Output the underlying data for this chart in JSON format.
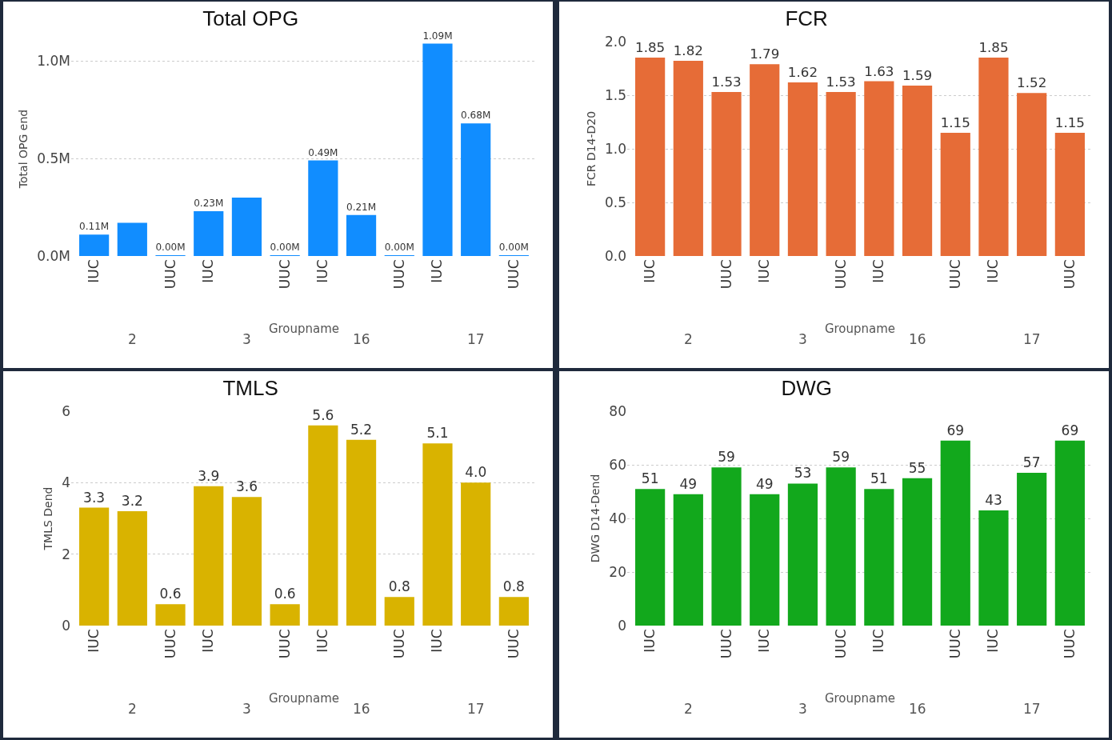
{
  "chart_data": [
    {
      "type": "bar",
      "title": "Total OPG",
      "xlabel": "Groupname",
      "ylabel": "Total OPG end",
      "categories": [
        "IUC",
        null,
        "UUC",
        "IUC",
        null,
        "UUC",
        "IUC",
        null,
        "UUC",
        "IUC",
        null,
        "UUC"
      ],
      "annotations": [
        "2",
        "3",
        "16",
        "17"
      ],
      "values": [
        0.11,
        0.17,
        0.004,
        0.23,
        0.3,
        0.004,
        0.49,
        0.21,
        0.004,
        1.09,
        0.68,
        0.004
      ],
      "value_labels": [
        "0.11M",
        null,
        "0.00M",
        "0.23M",
        null,
        "0.00M",
        "0.49M",
        "0.21M",
        "0.00M",
        "1.09M",
        "0.68M",
        "0.00M"
      ],
      "color": "#118dff",
      "ylim": [
        0,
        1.1
      ],
      "yticks": [
        {
          "value": 0,
          "label": "0.0M"
        },
        {
          "value": 0.5,
          "label": "0.5M"
        },
        {
          "value": 1,
          "label": "1.0M"
        }
      ],
      "grid": "y",
      "legend": false
    },
    {
      "type": "bar",
      "title": "FCR",
      "xlabel": "Groupname",
      "ylabel": "FCR D14-D20",
      "categories": [
        "IUC",
        null,
        "UUC",
        "IUC",
        null,
        "UUC",
        "IUC",
        null,
        "UUC",
        "IUC",
        null,
        "UUC"
      ],
      "annotations": [
        "2",
        "3",
        "16",
        "17"
      ],
      "values": [
        1.85,
        1.82,
        1.53,
        1.79,
        1.62,
        1.53,
        1.63,
        1.59,
        1.15,
        1.85,
        1.52,
        1.15
      ],
      "data_labels": true,
      "color": "#e66c37",
      "ylim": [
        0,
        2
      ],
      "yticks": [
        {
          "value": 0,
          "label": "0.0"
        },
        {
          "value": 0.5,
          "label": "0.5"
        },
        {
          "value": 1,
          "label": "1.0"
        },
        {
          "value": 1.5,
          "label": "1.5"
        },
        {
          "value": 2,
          "label": "2.0"
        }
      ],
      "grid": "y",
      "legend": false
    },
    {
      "type": "bar",
      "title": "TMLS",
      "xlabel": "Groupname",
      "ylabel": "TMLS Dend",
      "categories": [
        "IUC",
        null,
        "UUC",
        "IUC",
        null,
        "UUC",
        "IUC",
        null,
        "UUC",
        "IUC",
        null,
        "UUC"
      ],
      "annotations": [
        "2",
        "3",
        "16",
        "17"
      ],
      "values": [
        3.3,
        3.2,
        0.6,
        3.9,
        3.6,
        0.6,
        5.6,
        5.2,
        0.8,
        5.1,
        4.0,
        0.8
      ],
      "value_labels": [
        "3.3",
        "3.2",
        "0.6",
        "3.9",
        "3.6",
        "0.6",
        "5.6",
        "5.2",
        "0.8",
        "5.1",
        "4.0",
        "0.8"
      ],
      "color": "#d9b300",
      "ylim": [
        0,
        6
      ],
      "yticks": [
        0,
        2,
        4,
        6
      ],
      "grid": "y",
      "legend": false
    },
    {
      "type": "bar",
      "title": "DWG",
      "xlabel": "Groupname",
      "ylabel": "DWG D14-Dend",
      "categories": [
        "IUC",
        null,
        "UUC",
        "IUC",
        null,
        "UUC",
        "IUC",
        null,
        "UUC",
        "IUC",
        null,
        "UUC"
      ],
      "annotations": [
        "2",
        "3",
        "16",
        "17"
      ],
      "values": [
        51,
        49,
        59,
        49,
        53,
        59,
        51,
        55,
        69,
        43,
        57,
        69
      ],
      "data_labels": true,
      "color": "#12a81c",
      "ylim": [
        0,
        80
      ],
      "yticks": [
        0,
        20,
        40,
        60,
        80
      ],
      "grid": "y",
      "legend": false
    }
  ]
}
